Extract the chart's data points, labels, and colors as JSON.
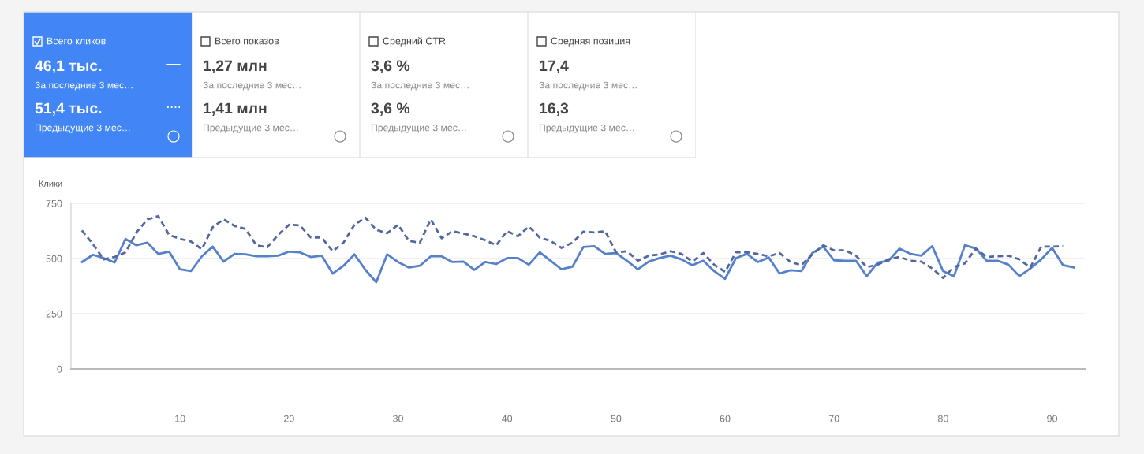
{
  "chart_data": [
    {
      "type": "other",
      "title": "Всего кликов",
      "annotations": [
        "46,1 тыс.",
        "За последние 3 мес…",
        "51,4 тыс.",
        "Предыдущие 3 мес…"
      ]
    },
    {
      "type": "other",
      "title": "Всего показов",
      "annotations": [
        "1,27 млн",
        "За последние 3 мес…",
        "1,41 млн",
        "Предыдущие 3 мес…"
      ]
    },
    {
      "type": "other",
      "title": "Средний CTR",
      "annotations": [
        "3,6 %",
        "За последние 3 мес…",
        "3,6 %",
        "Предыдущие 3 мес…"
      ]
    },
    {
      "type": "other",
      "title": "Средняя позиция",
      "annotations": [
        "17,4",
        "За последние 3 мес…",
        "16,3",
        "Предыдущие 3 мес…"
      ]
    },
    {
      "type": "line",
      "ylabel": "Клики",
      "xlim": [
        0,
        93
      ],
      "xticks": [
        10,
        20,
        30,
        40,
        50,
        60,
        70,
        80,
        90
      ],
      "ylim": [
        0,
        750
      ],
      "yticks": [
        0,
        250,
        500,
        750
      ],
      "grid": "y",
      "marker": "none",
      "x": [
        1,
        2,
        3,
        4,
        5,
        6,
        7,
        8,
        9,
        10,
        11,
        12,
        13,
        14,
        15,
        16,
        17,
        18,
        19,
        20,
        21,
        22,
        23,
        24,
        25,
        26,
        27,
        28,
        29,
        30,
        31,
        32,
        33,
        34,
        35,
        36,
        37,
        38,
        39,
        40,
        41,
        42,
        43,
        44,
        45,
        46,
        47,
        48,
        49,
        50,
        51,
        52,
        53,
        54,
        55,
        56,
        57,
        58,
        59,
        60,
        61,
        62,
        63,
        64,
        65,
        66,
        67,
        68,
        69,
        70,
        71,
        72,
        73,
        74,
        75,
        76,
        77,
        78,
        79,
        80,
        81,
        82,
        83,
        84,
        85,
        86,
        87,
        88,
        89,
        90,
        91,
        92
      ],
      "series": [
        {
          "color": "#5580cc",
          "line_style": "solid",
          "values": [
            484,
            517,
            502,
            482,
            589,
            560,
            572,
            521,
            531,
            451,
            443,
            510,
            554,
            486,
            521,
            519,
            510,
            510,
            513,
            531,
            528,
            507,
            513,
            432,
            467,
            519,
            449,
            393,
            519,
            484,
            459,
            467,
            510,
            510,
            484,
            486,
            449,
            484,
            475,
            502,
            502,
            472,
            528,
            490,
            451,
            463,
            552,
            556,
            521,
            525,
            490,
            451,
            486,
            502,
            513,
            496,
            470,
            490,
            443,
            408,
            502,
            521,
            484,
            505,
            432,
            447,
            443,
            525,
            554,
            492,
            490,
            490,
            420,
            482,
            490,
            545,
            521,
            513,
            556,
            443,
            420,
            560,
            545,
            490,
            490,
            472,
            420,
            455,
            496,
            548,
            470,
            459
          ]
        },
        {
          "color": "#52679e",
          "line_style": "dashed",
          "values": [
            627,
            566,
            496,
            507,
            528,
            618,
            677,
            692,
            607,
            589,
            577,
            542,
            642,
            677,
            648,
            634,
            560,
            551,
            607,
            653,
            650,
            595,
            595,
            533,
            572,
            653,
            685,
            630,
            615,
            653,
            580,
            572,
            677,
            592,
            624,
            613,
            601,
            583,
            560,
            624,
            601,
            645,
            595,
            580,
            548,
            572,
            622,
            618,
            624,
            528,
            533,
            490,
            513,
            519,
            533,
            521,
            486,
            525,
            472,
            440,
            528,
            528,
            521,
            510,
            525,
            484,
            470,
            519,
            560,
            537,
            537,
            513,
            461,
            472,
            496,
            507,
            490,
            486,
            455,
            412,
            461,
            478,
            545,
            507,
            510,
            513,
            496,
            459,
            554,
            554,
            556,
            null
          ]
        }
      ]
    }
  ]
}
